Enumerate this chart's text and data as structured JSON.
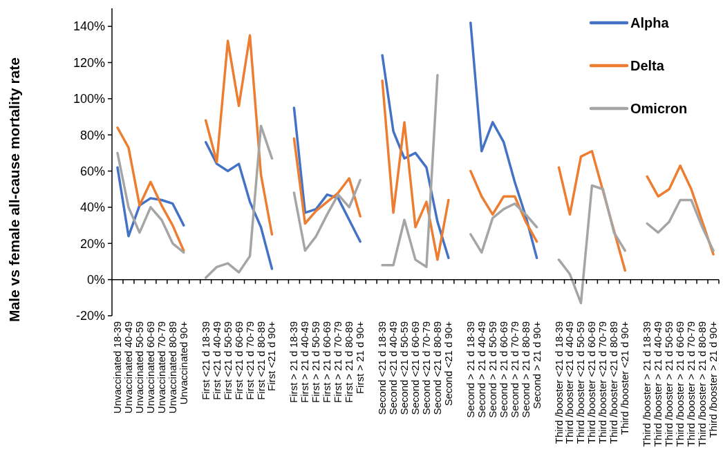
{
  "chart_data": {
    "type": "line",
    "ylabel": "Male vs female all-cause mortality rate",
    "categories": [
      "Unvaccinated 18-39",
      "Unvaccinated 40-49",
      "Unvaccinated 50-59",
      "Unvaccinated 60-69",
      "Unvaccinated 70-79",
      "Unvaccinated 80-89",
      "Unvaccinated 90+",
      null,
      "First <21 d 18-39",
      "First <21 d 40-49",
      "First <21 d 50-59",
      "First <21 d 60-69",
      "First <21 d 70-79",
      "First <21 d 80-89",
      "First <21 d 90+",
      null,
      "First > 21 d 18-39",
      "First > 21 d 40-49",
      "First > 21 d 50-59",
      "First > 21 d 60-69",
      "First > 21 d 70-79",
      "First > 21 d 80-89",
      "First > 21 d 90+",
      null,
      "Second <21 d 18-39",
      "Second <21 d 40-49",
      "Second <21 d 50-59",
      "Second <21 d 60-69",
      "Second <21 d 70-79",
      "Second <21 d 80-89",
      "Second <21 d 90+",
      null,
      "Second > 21 d 18-39",
      "Second > 21 d 40-49",
      "Second > 21 d 50-59",
      "Second > 21 d 60-69",
      "Second > 21 d 70-79",
      "Second > 21 d 80-89",
      "Second > 21 d 90+",
      null,
      "Third /booster <21 d 18-39",
      "Third /booster <21 d 40-49",
      "Third /booster <21 d 50-59",
      "Third /booster <21 d 60-69",
      "Third /booster <21 d 70-79",
      "Third /booster <21 d 80-89",
      "Third /booster <21 d 90+",
      null,
      "Third /booster > 21 d 18-39",
      "Third /booster > 21 d 40-49",
      "Third /booster > 21 d 50-59",
      "Third /booster > 21 d 60-69",
      "Third /booster > 21 d 70-79",
      "Third /booster > 21 d 80-89",
      "Third /booster > 21 d 90+"
    ],
    "series": [
      {
        "name": "Alpha",
        "color": "#4472c4",
        "values": [
          62,
          24,
          41,
          45,
          44,
          42,
          30,
          null,
          76,
          64,
          60,
          64,
          43,
          29,
          6,
          null,
          95,
          37,
          39,
          47,
          45,
          33,
          21,
          null,
          124,
          82,
          67,
          70,
          62,
          32,
          12,
          null,
          142,
          71,
          87,
          76,
          54,
          35,
          12,
          null,
          null,
          null,
          null,
          null,
          null,
          null,
          null,
          null,
          null,
          null,
          null,
          null,
          null,
          null,
          null
        ]
      },
      {
        "name": "Delta",
        "color": "#ed7d31",
        "values": [
          84,
          73,
          41,
          54,
          41,
          30,
          16,
          null,
          88,
          65,
          132,
          96,
          135,
          58,
          25,
          null,
          78,
          31,
          38,
          43,
          48,
          56,
          35,
          null,
          110,
          37,
          87,
          29,
          43,
          11,
          44,
          null,
          60,
          46,
          36,
          46,
          46,
          32,
          21,
          null,
          62,
          36,
          68,
          71,
          49,
          27,
          5,
          null,
          57,
          46,
          50,
          63,
          50,
          32,
          14
        ]
      },
      {
        "name": "Omicron",
        "color": "#a5a5a5",
        "values": [
          70,
          40,
          26,
          40,
          33,
          20,
          15,
          null,
          1,
          7,
          9,
          4,
          13,
          85,
          67,
          null,
          48,
          16,
          24,
          36,
          47,
          40,
          55,
          null,
          8,
          8,
          33,
          11,
          7,
          113,
          null,
          null,
          25,
          15,
          34,
          39,
          42,
          36,
          29,
          null,
          11,
          3,
          -13,
          52,
          50,
          26,
          16,
          null,
          31,
          26,
          32,
          44,
          44,
          29,
          16
        ]
      }
    ],
    "ylim": [
      -20,
      150
    ],
    "yticks": [
      {
        "value": -20,
        "label": "-20%"
      },
      {
        "value": 0,
        "label": "0%"
      },
      {
        "value": 20,
        "label": "20%"
      },
      {
        "value": 40,
        "label": "40%"
      },
      {
        "value": 60,
        "label": "60%"
      },
      {
        "value": 80,
        "label": "80%"
      },
      {
        "value": 100,
        "label": "100%"
      },
      {
        "value": 120,
        "label": "120%"
      },
      {
        "value": 140,
        "label": "140%"
      }
    ],
    "legend": "top right",
    "marker": "none",
    "line_style": "solid"
  }
}
